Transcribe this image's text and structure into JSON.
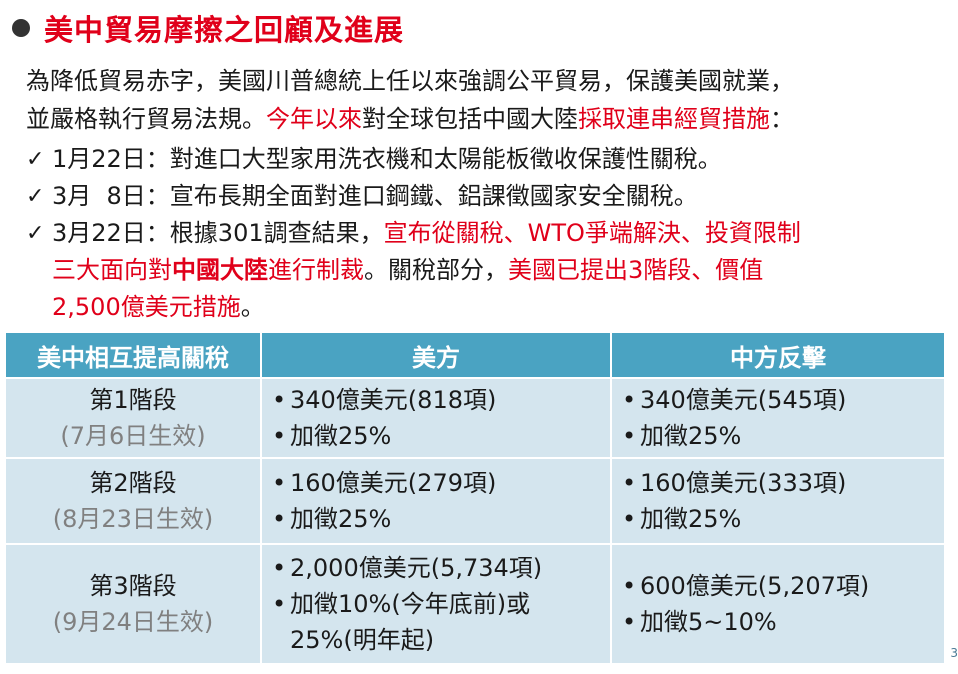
{
  "title": "美中貿易摩擦之回顧及進展",
  "intro": {
    "line1": "為降低貿易赤字，美國川普總統上任以來強調公平貿易，保護美國就業，",
    "line2_a": "並嚴格執行貿易法規。",
    "line2_b": "今年以來",
    "line2_c": "對全球包括中國大陸",
    "line2_d": "採取連串經貿措施",
    "line2_e": "："
  },
  "checks": {
    "mark": "✓",
    "item1": "1月22日：對進口大型家用洗衣機和太陽能板徵收保護性關稅。",
    "item2": "3月  8日：宣布長期全面對進口鋼鐵、鋁課徵國家安全關稅。",
    "item3_a": "3月22日：根據301調查結果，",
    "item3_b": "宣布從關稅、WTO爭端解決、投資限制",
    "item3_c": "三大面向對",
    "item3_d": "中國大陸",
    "item3_e": "進行制裁",
    "item3_f": "。關稅部分，",
    "item3_g": "美國已提出3階段、價值",
    "item3_h": "2,500億美元措施",
    "item3_i": "。"
  },
  "table": {
    "headers": [
      "美中相互提高關稅",
      "美方",
      "中方反擊"
    ],
    "rows": [
      {
        "stage": "第1階段",
        "date": "(7月6日生效)",
        "us": [
          "340億美元(818項)",
          "加徵25%"
        ],
        "cn": [
          "340億美元(545項)",
          "加徵25%"
        ]
      },
      {
        "stage": "第2階段",
        "date": "(8月23日生效)",
        "us": [
          "160億美元(279項)",
          "加徵25%"
        ],
        "cn": [
          "160億美元(333項)",
          "加徵25%"
        ]
      },
      {
        "stage": "第3階段",
        "date": "(9月24日生效)",
        "us": [
          "2,000億美元(5,734項)",
          "加徵10%(今年底前)或",
          "25%(明年起)"
        ],
        "cn": [
          "600億美元(5,207項)",
          "加徵5~10%"
        ]
      }
    ]
  },
  "page_number": "3",
  "colors": {
    "title_red": "#e0001a",
    "header_blue": "#4aa3c2",
    "cell_bg": "#d4e5ee"
  }
}
